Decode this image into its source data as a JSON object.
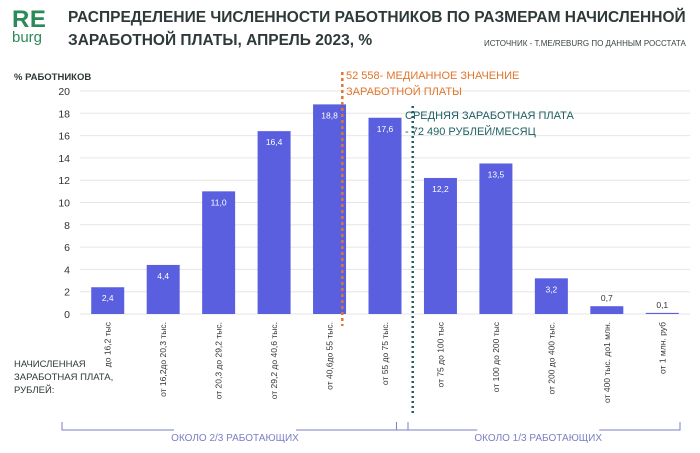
{
  "logo": {
    "re": "RE",
    "burg": "burg"
  },
  "title": "РАСПРЕДЕЛЕНИЕ ЧИСЛЕННОСТИ РАБОТНИКОВ ПО РАЗМЕРАМ НАЧИСЛЕННОЙ ЗАРАБОТНОЙ ПЛАТЫ, АПРЕЛЬ 2023, %",
  "source": "ИСТОЧНИК - T.ME/REBURG ПО ДАННЫМ РОССТАТА",
  "colors": {
    "bar": "#5a5fe0",
    "median_line": "#e0762d",
    "average_line": "#1f5f63",
    "bracket": "#7a7fc4",
    "grid": "#e6e6e6",
    "logo": "#2a8a5a"
  },
  "chart_data": {
    "type": "bar",
    "ylabel": "% РАБОТНИКОВ",
    "xlabel": "НАЧИСЛЕННАЯ ЗАРАБОТНАЯ ПЛАТА, РУБЛЕЙ:",
    "ylim": [
      0,
      20
    ],
    "yticks": [
      0,
      2,
      4,
      6,
      8,
      10,
      12,
      14,
      16,
      18,
      20
    ],
    "grid": true,
    "categories": [
      "до 16,2 тыс",
      "от 16,2до 20,3 тыс.",
      "от 20,3 до 29,2 тыс.",
      "от 29,2 до 40,6 тыс.",
      "от 40,6до 55 тыс.",
      "от 55 до 75 тыс.",
      "от 75 до 100 тыс",
      "от 100 до 200 тыс",
      "от 200 до 400 тыс.",
      "от 400 тыс. до1 млн.",
      "от 1 млн. руб"
    ],
    "values": [
      2.4,
      4.4,
      11.0,
      16.4,
      18.8,
      17.6,
      12.2,
      13.5,
      3.2,
      0.7,
      0.1
    ],
    "value_labels": [
      "2,4",
      "4,4",
      "11,0",
      "16,4",
      "18,8",
      "17,6",
      "12,2",
      "13,5",
      "3,2",
      "0,7",
      "0,1"
    ],
    "annotations": {
      "median": "52 558- МЕДИАННОЕ ЗНАЧЕНИЕ ЗАРАБОТНОЙ ПЛАТЫ",
      "median_lines": [
        "52 558- МЕДИАННОЕ ЗНАЧЕНИЕ",
        "ЗАРАБОТНОЙ ПЛАТЫ"
      ],
      "average": "СРЕДНЯЯ ЗАРАБОТНАЯ ПЛАТА - 72 490 РУБЛЕЙ/МЕСЯЦ",
      "average_lines": [
        "СРЕДНЯЯ ЗАРАБОТНАЯ ПЛАТА",
        "- 72 490 РУБЛЕЙ/МЕСЯЦ"
      ]
    },
    "brackets": [
      {
        "label": "ОКОЛО 2/3 РАБОТАЮЩИХ",
        "from": 0,
        "to": 5
      },
      {
        "label": "ОКОЛО 1/3 РАБОТАЮЩИХ",
        "from": 6,
        "to": 10
      }
    ]
  }
}
